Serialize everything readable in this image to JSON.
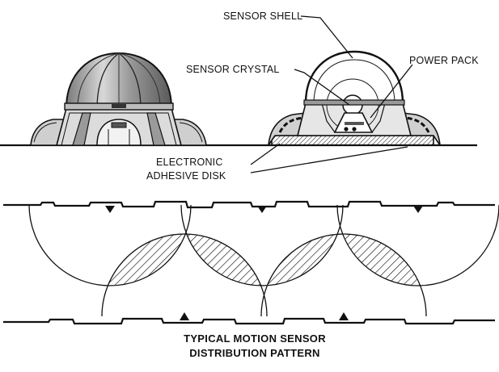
{
  "labels": {
    "sensor_shell": "SENSOR SHELL",
    "sensor_crystal": "SENSOR CRYSTAL",
    "power_pack": "POWER PACK",
    "adhesive_line1": "ELECTRONIC",
    "adhesive_line2": "ADHESIVE DISK"
  },
  "caption": {
    "line1": "TYPICAL MOTION SENSOR",
    "line2": "DISTRIBUTION PATTERN"
  },
  "colors": {
    "ink": "#111111",
    "dome_fill": "#b8b8b8",
    "dome_dark": "#6a6a6a",
    "paper": "#ffffff"
  }
}
